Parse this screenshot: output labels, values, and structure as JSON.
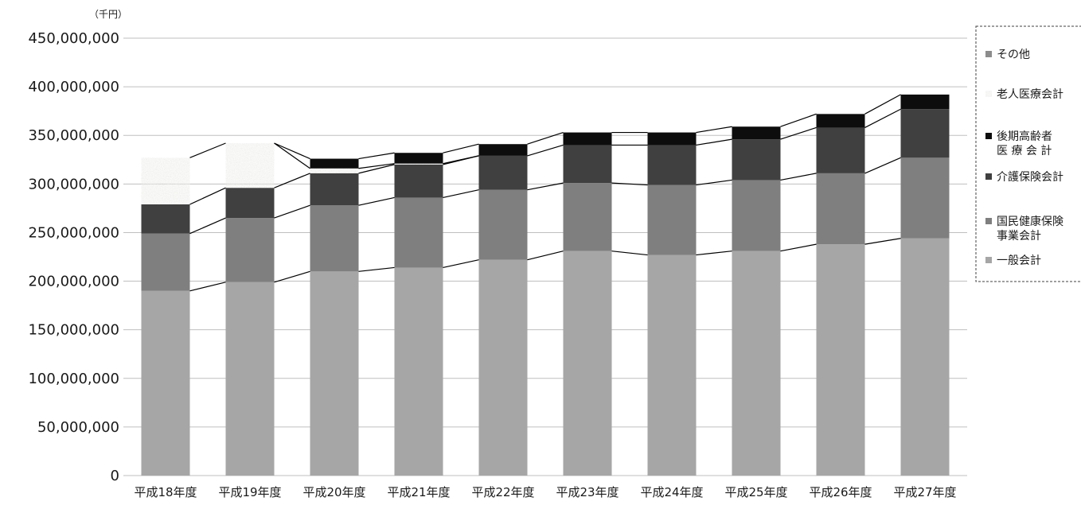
{
  "chart_data": {
    "type": "bar",
    "stacked": true,
    "unit_label": "（千円）",
    "ylim": [
      0,
      450000000
    ],
    "yticks": [
      0,
      50000000,
      100000000,
      150000000,
      200000000,
      250000000,
      300000000,
      350000000,
      400000000,
      450000000
    ],
    "ytick_labels": [
      "0",
      "50,000,000",
      "100,000,000",
      "150,000,000",
      "200,000,000",
      "250,000,000",
      "300,000,000",
      "350,000,000",
      "400,000,000",
      "450,000,000"
    ],
    "grid": true,
    "legend_position": "right",
    "categories": [
      "平成18年度",
      "平成19年度",
      "平成20年度",
      "平成21年度",
      "平成22年度",
      "平成23年度",
      "平成24年度",
      "平成25年度",
      "平成26年度",
      "平成27年度"
    ],
    "series": [
      {
        "name": "一般会計",
        "color": "#a6a6a6",
        "values": [
          190000000,
          199000000,
          210000000,
          214000000,
          222000000,
          231000000,
          227000000,
          231000000,
          238000000,
          244000000
        ]
      },
      {
        "name": "国民健康保険事業会計",
        "color": "#7f7f7f",
        "values": [
          59000000,
          66000000,
          68000000,
          72000000,
          72000000,
          70000000,
          72000000,
          73000000,
          73000000,
          83000000
        ]
      },
      {
        "name": "介護保険会計",
        "color": "#404040",
        "values": [
          30000000,
          31000000,
          33000000,
          34000000,
          35000000,
          39000000,
          41000000,
          42000000,
          47000000,
          50000000
        ]
      },
      {
        "name": "老人医療会計",
        "color": "#ececea",
        "values": [
          48000000,
          46000000,
          5000000,
          1000000,
          0,
          0,
          0,
          0,
          0,
          0
        ]
      },
      {
        "name": "後期高齢者医療会計",
        "color": "#0d0d0d",
        "values": [
          0,
          0,
          10000000,
          11000000,
          12000000,
          13000000,
          13000000,
          13000000,
          14000000,
          15000000
        ]
      },
      {
        "name": "その他",
        "color": "#8c8c8c",
        "values": [
          0,
          0,
          0,
          0,
          0,
          0,
          0,
          0,
          0,
          0
        ]
      }
    ],
    "legend": [
      {
        "lines": [
          "その他"
        ],
        "series": "その他"
      },
      {
        "lines": [
          "老人医療会計"
        ],
        "series": "老人医療会計"
      },
      {
        "lines": [
          "後期高齢者",
          "医 療 会 計"
        ],
        "series": "後期高齢者医療会計"
      },
      {
        "lines": [
          "介護保険会計"
        ],
        "series": "介護保険会計"
      },
      {
        "lines": [
          "国民健康保険",
          "事業会計"
        ],
        "series": "国民健康保険事業会計"
      },
      {
        "lines": [
          "一般会計"
        ],
        "series": "一般会計"
      }
    ]
  }
}
